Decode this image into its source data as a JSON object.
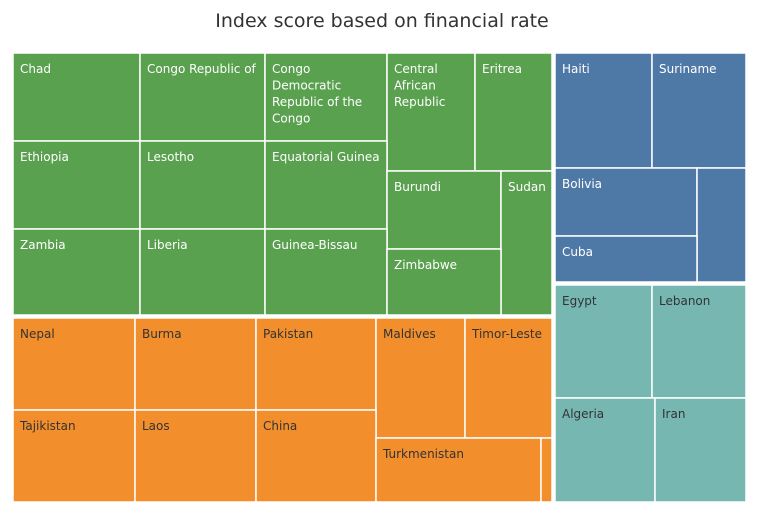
{
  "title": "Index score based on financial rate",
  "chart_data": {
    "type": "treemap",
    "title": "Index score based on financial rate",
    "groups": [
      {
        "color": "#59a14f",
        "label_color": "#ffffff",
        "countries": [
          "Chad",
          "Congo Republic of",
          "Congo Democratic Republic of the Congo",
          "Central African Republic",
          "Eritrea",
          "Ethiopia",
          "Lesotho",
          "Equatorial Guinea",
          "Burundi",
          "Sudan",
          "Zambia",
          "Liberia",
          "Guinea-Bissau",
          "Zimbabwe"
        ]
      },
      {
        "color": "#f28e2b",
        "label_color": "#333333",
        "countries": [
          "Nepal",
          "Burma",
          "Pakistan",
          "Maldives",
          "Timor-Leste",
          "Tajikistan",
          "Laos",
          "China",
          "Turkmenistan",
          ""
        ]
      },
      {
        "color": "#4e79a7",
        "label_color": "#ffffff",
        "countries": [
          "Haiti",
          "Suriname",
          "Bolivia",
          "",
          "Cuba"
        ]
      },
      {
        "color": "#76b7b2",
        "label_color": "#333333",
        "countries": [
          "Egypt",
          "Lebanon",
          "Algeria",
          "Iran"
        ]
      }
    ]
  }
}
